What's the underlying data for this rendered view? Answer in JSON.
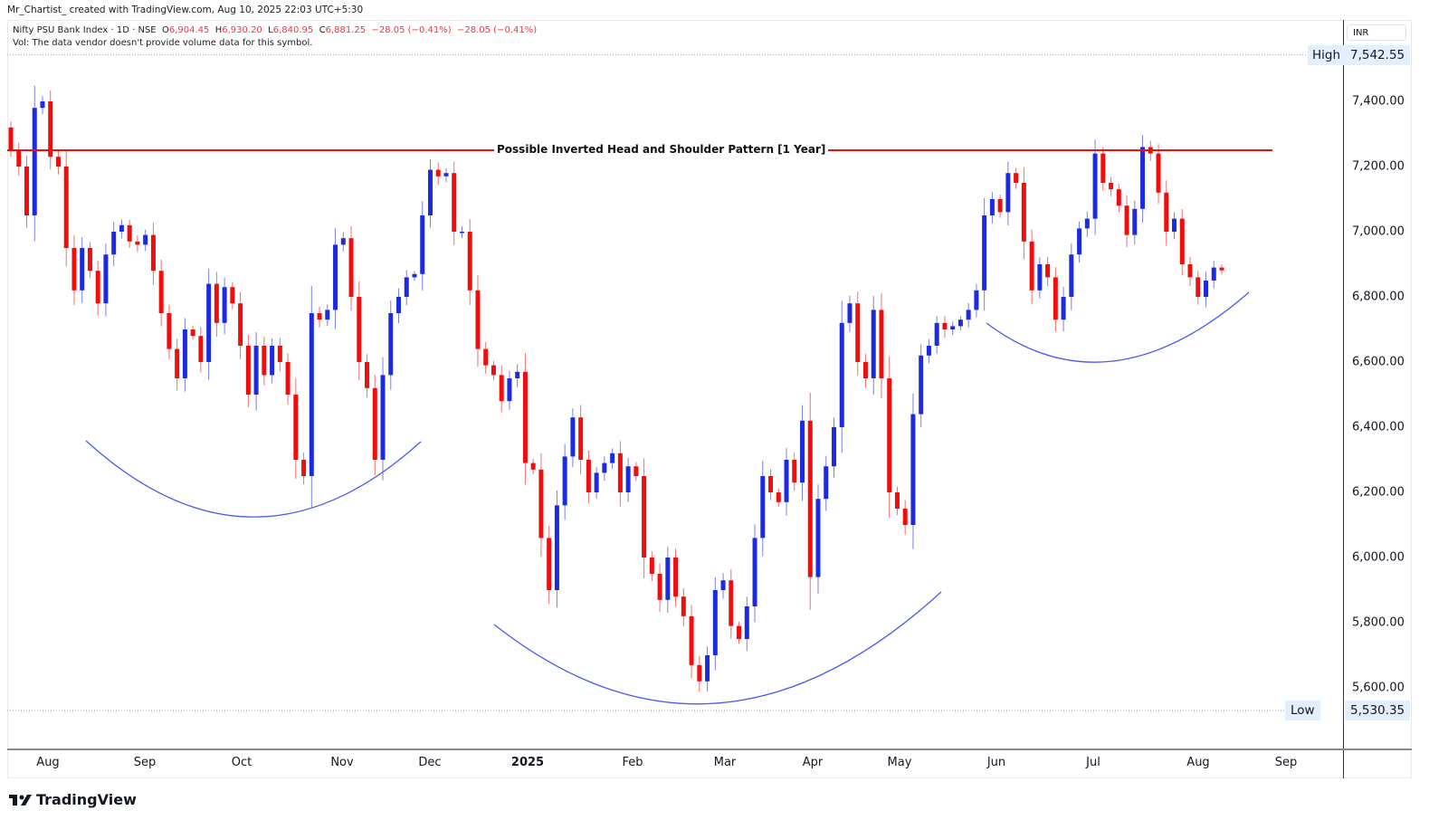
{
  "header": {
    "credit": "Mr_Chartist_ created with TradingView.com, Aug 10, 2025 22:03 UTC+5:30",
    "symbol": "Nifty PSU Bank Index · 1D · NSE",
    "open_label": "O",
    "open": "6,904.45",
    "high_label": "H",
    "high": "6,930.20",
    "low_label": "L",
    "low": "6,840.95",
    "close_label": "C",
    "close": "6,881.25",
    "change": "−28.05 (−0.41%)",
    "change2": "−28.05 (−0.41%)",
    "volume_note": "Vol: The data vendor doesn't provide volume data for this symbol."
  },
  "price_axis": {
    "currency": "INR",
    "high_tag": "High",
    "high_value": "7,542.55",
    "low_tag": "Low",
    "low_value": "5,530.35"
  },
  "footer": {
    "logo": "TradingView"
  },
  "colors": {
    "up": "#1c2be0",
    "down": "#f20d0d",
    "resistance": "#f20d0d",
    "arc": "#4a5cf0"
  },
  "chart_data": {
    "type": "candlestick",
    "title": "",
    "annotation": "Possible Inverted Head and Shoulder Pattern [1 Year]",
    "resistance_level": 7250,
    "high": 7542.55,
    "low": 5530.35,
    "ylim": [
      5430,
      7620
    ],
    "y_ticks": [
      5600,
      5800,
      6000,
      6200,
      6400,
      6600,
      6800,
      7000,
      7200,
      7400
    ],
    "y_tick_labels": [
      "5,600.00",
      "5,800.00",
      "6,000.00",
      "6,200.00",
      "6,400.00",
      "6,600.00",
      "6,800.00",
      "7,000.00",
      "7,200.00",
      "7,400.00"
    ],
    "x_tick_labels": [
      "Aug",
      "Sep",
      "Oct",
      "Nov",
      "Dec",
      "2025",
      "Feb",
      "Mar",
      "Apr",
      "May",
      "Jun",
      "Jul",
      "Aug",
      "Sep"
    ],
    "first_open": 7320,
    "closes": [
      7250,
      7200,
      7050,
      7380,
      7400,
      7230,
      7200,
      6950,
      6820,
      6950,
      6880,
      6780,
      6930,
      7000,
      7020,
      6970,
      6960,
      6990,
      6880,
      6750,
      6640,
      6550,
      6700,
      6680,
      6600,
      6840,
      6720,
      6830,
      6780,
      6650,
      6500,
      6650,
      6560,
      6650,
      6600,
      6500,
      6300,
      6250,
      6750,
      6730,
      6760,
      6960,
      6980,
      6800,
      6600,
      6520,
      6300,
      6560,
      6750,
      6800,
      6860,
      6870,
      7050,
      7190,
      7170,
      7180,
      7000,
      7000,
      6820,
      6640,
      6590,
      6560,
      6480,
      6550,
      6570,
      6290,
      6270,
      6060,
      5900,
      6160,
      6310,
      6430,
      6300,
      6200,
      6260,
      6290,
      6320,
      6200,
      6280,
      6250,
      6000,
      5950,
      5870,
      6000,
      5880,
      5820,
      5670,
      5620,
      5700,
      5900,
      5930,
      5790,
      5750,
      5850,
      6060,
      6250,
      6200,
      6170,
      6300,
      6230,
      6420,
      5940,
      6180,
      6280,
      6400,
      6720,
      6780,
      6600,
      6550,
      6760,
      6550,
      6200,
      6150,
      6100,
      6440,
      6620,
      6650,
      6720,
      6700,
      6710,
      6730,
      6760,
      6820,
      7050,
      7100,
      7060,
      7180,
      7150,
      6970,
      6820,
      6900,
      6860,
      6730,
      6800,
      6930,
      7010,
      7040,
      7240,
      7150,
      7130,
      7080,
      6990,
      7070,
      7260,
      7240,
      7120,
      7000,
      7040,
      6900,
      6860,
      6800,
      6850,
      6890,
      6881.25
    ],
    "drawn_arcs": 3,
    "grid": false
  }
}
